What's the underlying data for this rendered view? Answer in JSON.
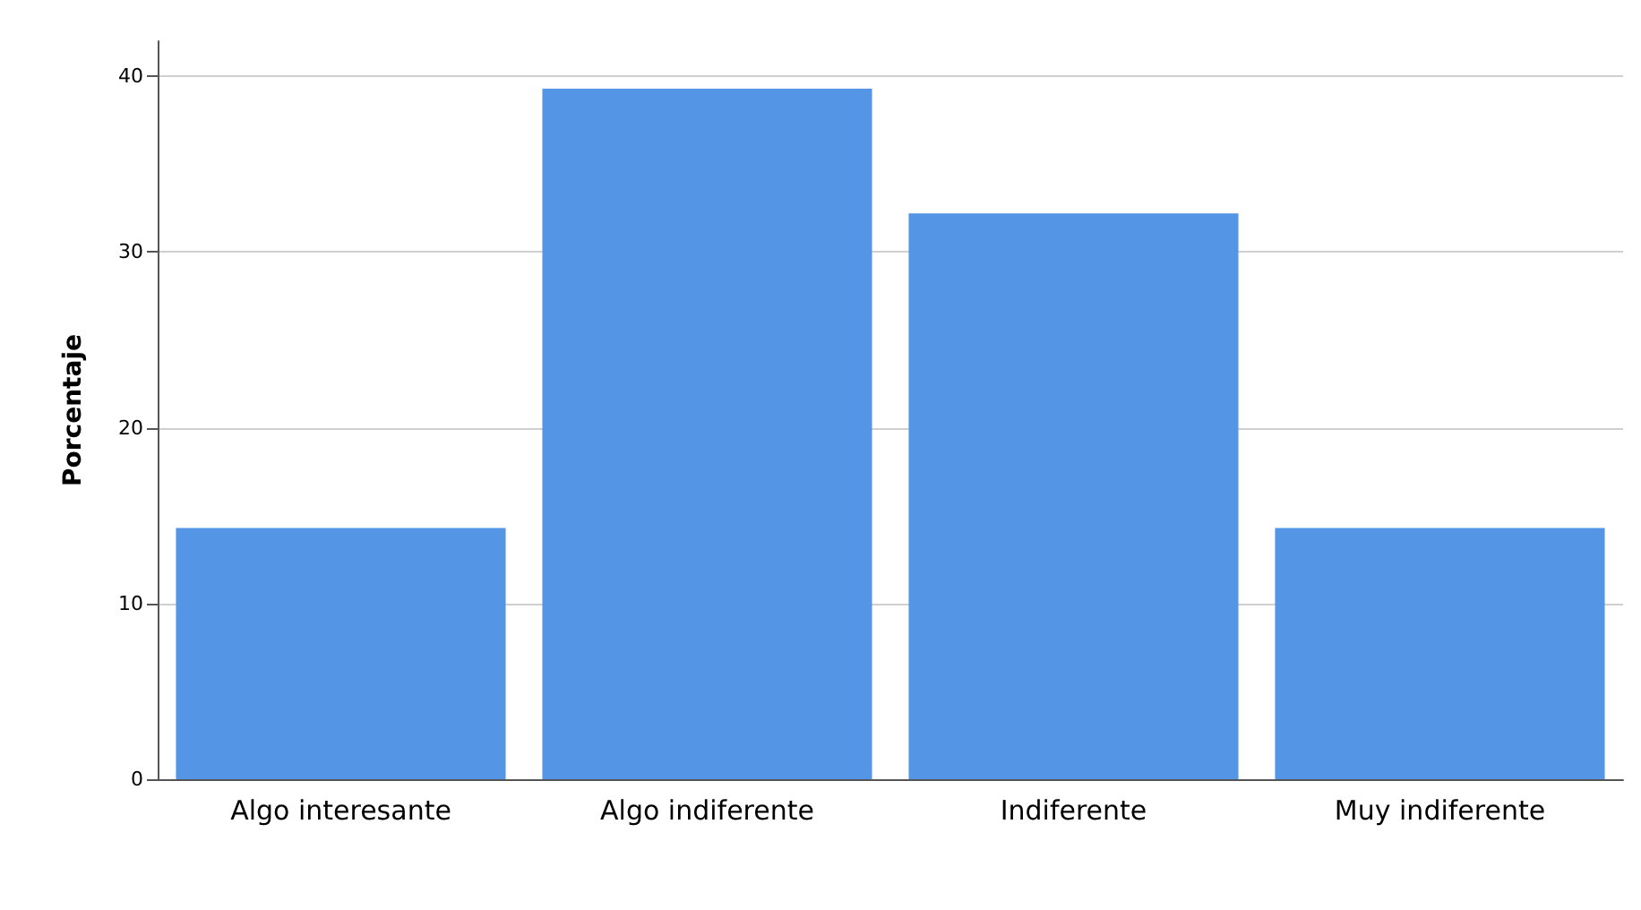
{
  "chart_data": {
    "type": "bar",
    "ylabel": "Porcentaje",
    "categories": [
      "Algo interesante",
      "Algo indiferente",
      "Indiferente",
      "Muy indiferente"
    ],
    "values": [
      14.3,
      39.3,
      32.2,
      14.3
    ],
    "color": "#5595e5",
    "ylim": [
      0,
      42
    ],
    "yticks": [
      0,
      10,
      20,
      30,
      40
    ],
    "grid": "y"
  }
}
